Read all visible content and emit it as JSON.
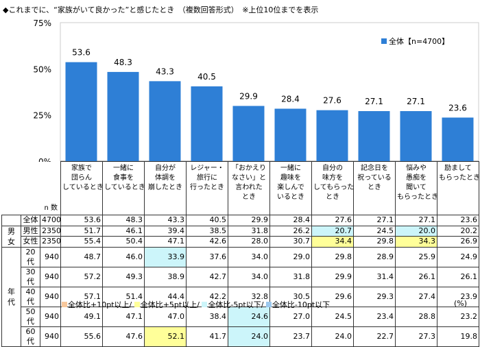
{
  "title": "◆これまでに、“家族がいて良かった”と感じたとき　（複数回答形式）　※上位10位までを表示",
  "colors": {
    "bar": "#2e7fd6",
    "plus10": "#f8c89c",
    "plus5": "#ffff99",
    "minus5": "#ccf5fa",
    "minus10": "#9cc9ee"
  },
  "chart_data": {
    "type": "bar",
    "ylim": [
      0,
      75
    ],
    "yticks": [
      "0%",
      "25%",
      "50%",
      "75%"
    ],
    "ytick_values": [
      0,
      25,
      50,
      75
    ],
    "legend": "全体【n=4700】",
    "legend_placement": "top-right",
    "categories": [
      "家族で\n団らん\nしているとき",
      "一緒に\n食事を\nしているとき",
      "自分が\n体調を\n崩したとき",
      "レジャー・\n旅行に\n行ったとき",
      "「おかえり\nなさい」と\n言われた\nとき",
      "一緒に\n趣味を\n楽しんで\nいるとき",
      "自分の\n味方を\nしてもらった\nとき",
      "記念日を\n祝っている\nとき",
      "悩みや\n愚痴を\n聞いて\nもらったとき",
      "励まして\nもらったとき"
    ],
    "values": [
      53.6,
      48.3,
      43.3,
      40.5,
      29.9,
      28.4,
      27.6,
      27.1,
      27.1,
      23.6
    ],
    "grid": false
  },
  "table": {
    "n_label": "n 数",
    "rows": [
      {
        "group": "",
        "label": "全体",
        "n": "4700",
        "vals": [
          "53.6",
          "48.3",
          "43.3",
          "40.5",
          "29.9",
          "28.4",
          "27.6",
          "27.1",
          "27.1",
          "23.6"
        ],
        "hl": [
          "",
          "",
          "",
          "",
          "",
          "",
          "",
          "",
          "",
          ""
        ]
      },
      {
        "group": "男女",
        "label": "男性",
        "n": "2350",
        "vals": [
          "51.7",
          "46.1",
          "39.4",
          "38.5",
          "31.8",
          "26.2",
          "20.7",
          "24.5",
          "20.0",
          "20.2"
        ],
        "hl": [
          "",
          "",
          "",
          "",
          "",
          "",
          "c",
          "",
          "c",
          ""
        ]
      },
      {
        "group": "",
        "label": "女性",
        "n": "2350",
        "vals": [
          "55.4",
          "50.4",
          "47.1",
          "42.6",
          "28.0",
          "30.7",
          "34.4",
          "29.8",
          "34.3",
          "26.9"
        ],
        "hl": [
          "",
          "",
          "",
          "",
          "",
          "",
          "y",
          "",
          "y",
          ""
        ]
      },
      {
        "group": "年代",
        "label": "20代",
        "n": "940",
        "vals": [
          "48.7",
          "46.0",
          "33.9",
          "37.6",
          "34.0",
          "29.0",
          "29.8",
          "28.9",
          "25.9",
          "24.9"
        ],
        "hl": [
          "",
          "",
          "c",
          "",
          "",
          "",
          "",
          "",
          "",
          ""
        ]
      },
      {
        "group": "",
        "label": "30代",
        "n": "940",
        "vals": [
          "57.2",
          "49.3",
          "38.9",
          "42.7",
          "34.0",
          "31.8",
          "29.9",
          "31.4",
          "26.1",
          "26.1"
        ],
        "hl": [
          "",
          "",
          "",
          "",
          "",
          "",
          "",
          "",
          "",
          ""
        ]
      },
      {
        "group": "",
        "label": "40代",
        "n": "940",
        "vals": [
          "57.1",
          "51.4",
          "44.4",
          "42.2",
          "32.8",
          "30.5",
          "29.6",
          "29.3",
          "27.4",
          "23.9"
        ],
        "hl": [
          "",
          "",
          "",
          "",
          "",
          "",
          "",
          "",
          "",
          ""
        ]
      },
      {
        "group": "",
        "label": "50代",
        "n": "940",
        "vals": [
          "49.1",
          "47.1",
          "47.0",
          "38.4",
          "24.6",
          "27.0",
          "24.5",
          "23.4",
          "28.8",
          "23.2"
        ],
        "hl": [
          "",
          "",
          "",
          "",
          "c",
          "",
          "",
          "",
          "",
          ""
        ]
      },
      {
        "group": "",
        "label": "60代",
        "n": "940",
        "vals": [
          "55.6",
          "47.6",
          "52.1",
          "41.7",
          "24.0",
          "23.7",
          "24.0",
          "22.7",
          "27.3",
          "19.8"
        ],
        "hl": [
          "",
          "",
          "y",
          "",
          "c",
          "",
          "",
          "",
          "",
          ""
        ]
      }
    ]
  },
  "legend": [
    "全体比+10pt以上/",
    "全体比+5pt以上/",
    "全体比-5pt以下/",
    "全体比-10pt以下"
  ],
  "unit": "(%)"
}
